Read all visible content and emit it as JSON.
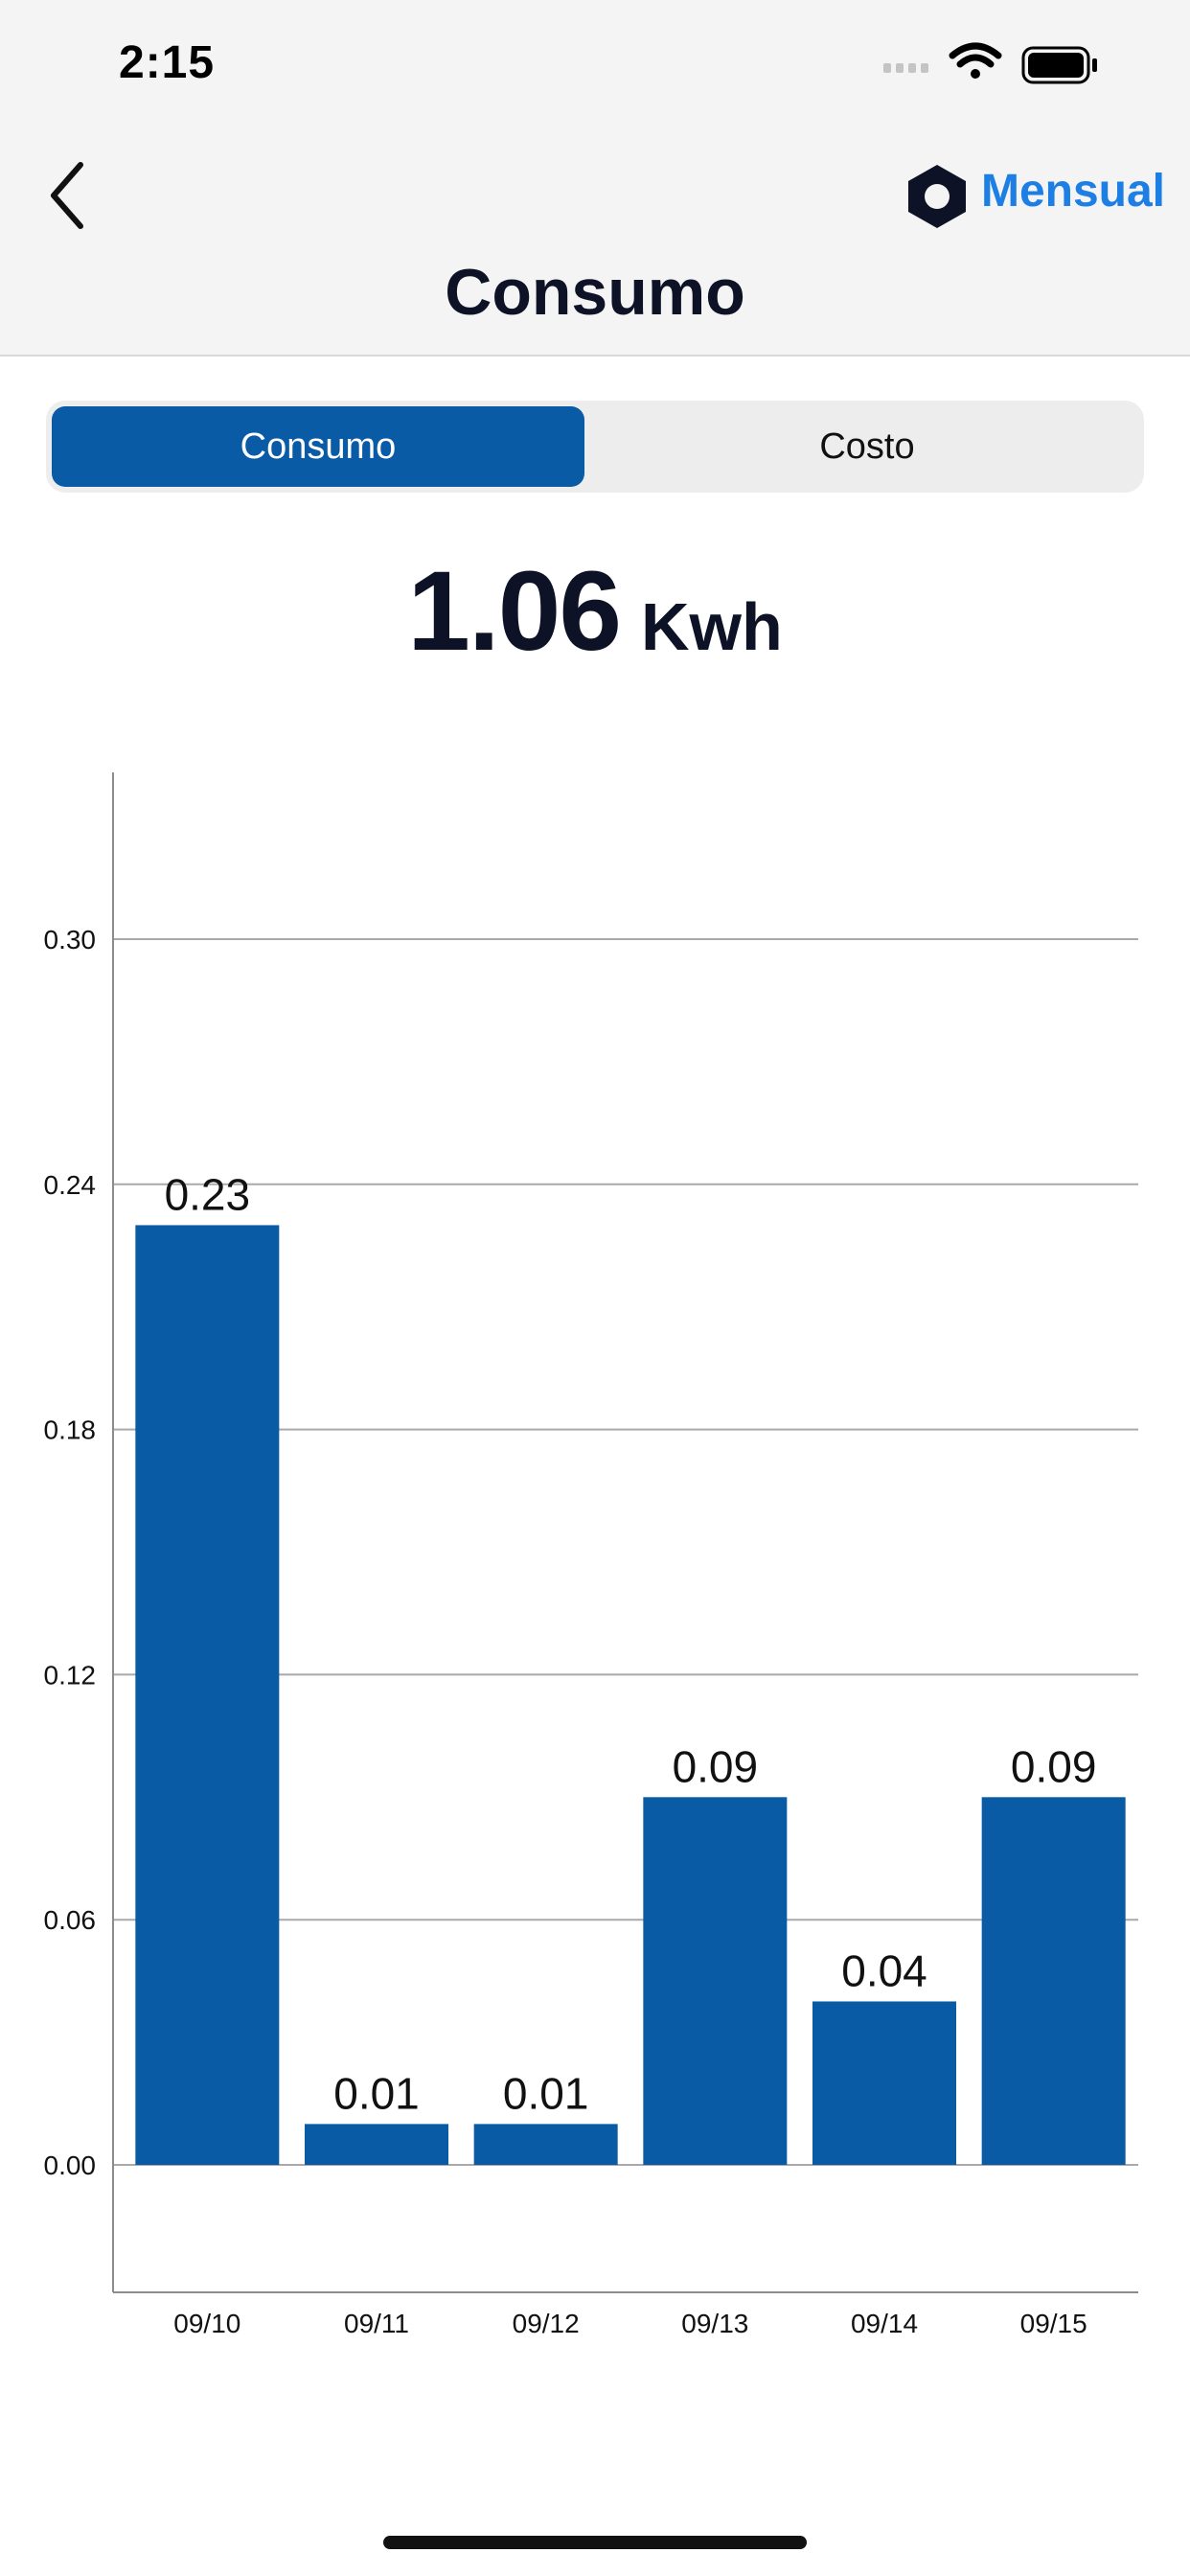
{
  "status_bar": {
    "time": "2:15",
    "icons": [
      "signal-icon",
      "wifi-icon",
      "battery-icon"
    ]
  },
  "nav": {
    "back_icon": "chevron-left-icon",
    "settings_icon": "hexagon-nut-icon",
    "period_label": "Mensual",
    "title": "Consumo"
  },
  "segmented": {
    "options": [
      "Consumo",
      "Costo"
    ],
    "selected": "Consumo"
  },
  "summary": {
    "total": "1.06",
    "unit": "Kwh"
  },
  "colors": {
    "accent": "#0a5ba6",
    "link": "#1d7fe3",
    "text": "#0d1226"
  },
  "chart_data": {
    "type": "bar",
    "categories": [
      "09/10",
      "09/11",
      "09/12",
      "09/13",
      "09/14",
      "09/15"
    ],
    "values": [
      0.23,
      0.01,
      0.01,
      0.09,
      0.04,
      0.09
    ],
    "data_labels": [
      "0.23",
      "0.01",
      "0.01",
      "0.09",
      "0.04",
      "0.09"
    ],
    "y_ticks": [
      "0.00",
      "0.06",
      "0.12",
      "0.18",
      "0.24",
      "0.30"
    ],
    "ylim": [
      -0.031,
      0.341
    ],
    "grid": true,
    "bar_color": "#0a5ba6"
  }
}
